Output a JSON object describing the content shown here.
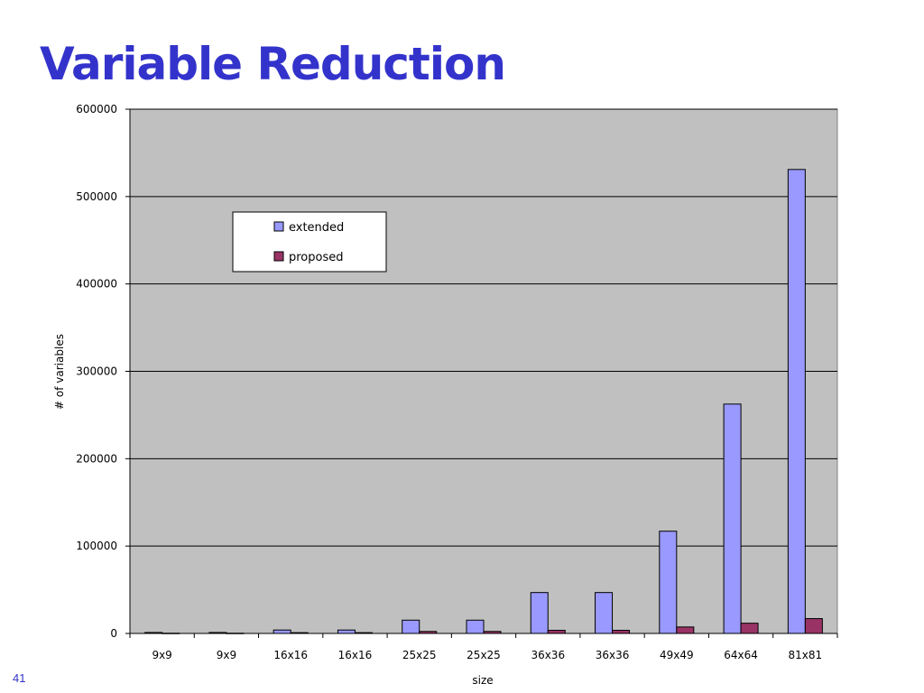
{
  "slide": {
    "title": "Variable Reduction",
    "number": "41"
  },
  "colors": {
    "plot_bg": "#C0C0C0",
    "extended": "#9999FF",
    "proposed": "#993366",
    "grid": "#000000"
  },
  "chart_data": {
    "type": "bar",
    "categories": [
      "9x9",
      "9x9",
      "16x16",
      "16x16",
      "25x25",
      "25x25",
      "36x36",
      "36x36",
      "49x49",
      "64x64",
      "81x81"
    ],
    "series": [
      {
        "name": "extended",
        "values": [
          1100,
          1100,
          3900,
          3900,
          15200,
          15200,
          46800,
          46800,
          117000,
          262500,
          531000
        ]
      },
      {
        "name": "proposed",
        "values": [
          250,
          250,
          900,
          900,
          2300,
          2300,
          3600,
          3600,
          7400,
          11700,
          17000
        ]
      }
    ],
    "xlabel": "size",
    "ylabel": "# of variables",
    "ylim": [
      0,
      600000
    ],
    "yticks": [
      0,
      100000,
      200000,
      300000,
      400000,
      500000,
      600000
    ],
    "ytick_labels": [
      "0",
      "100000",
      "200000",
      "300000",
      "400000",
      "500000",
      "600000"
    ],
    "grid": true,
    "legend": "upper-left"
  }
}
